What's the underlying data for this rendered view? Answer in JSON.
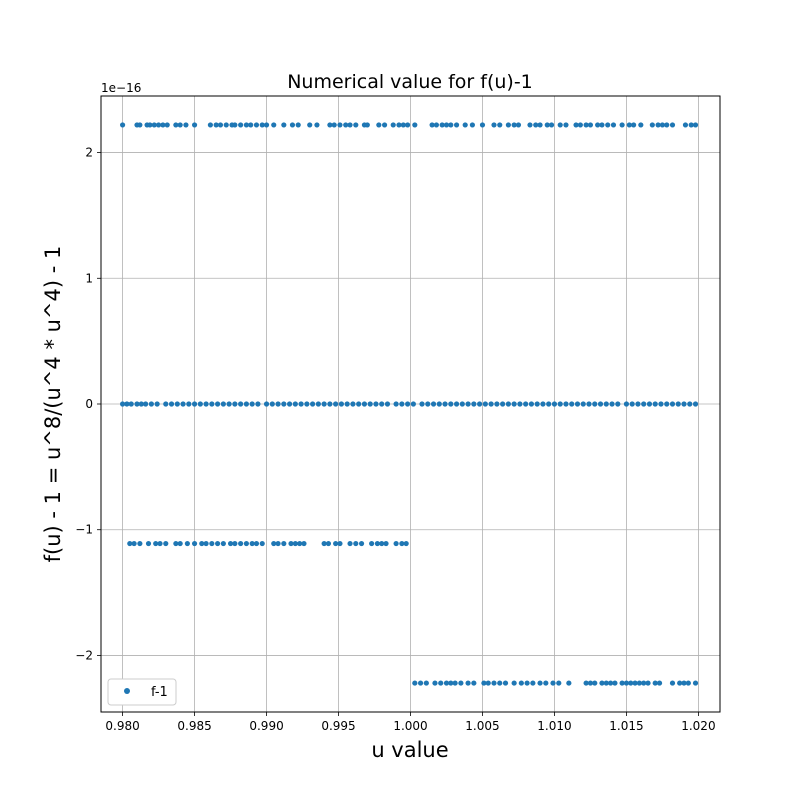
{
  "chart_data": {
    "type": "scatter",
    "title": "Numerical value for f(u)-1",
    "xlabel": "u value",
    "ylabel": "f(u) - 1 = u^8/(u^4 * u^4) - 1",
    "y_offset_text": "1e−16",
    "y_scale_exponent": -16,
    "xlim": [
      0.9785,
      1.0215
    ],
    "ylim": [
      -2.45,
      2.45
    ],
    "x_ticks": [
      0.98,
      0.985,
      0.99,
      0.995,
      1.0,
      1.005,
      1.01,
      1.015,
      1.02
    ],
    "x_tick_labels": [
      "0.980",
      "0.985",
      "0.990",
      "0.995",
      "1.000",
      "1.005",
      "1.010",
      "1.015",
      "1.020"
    ],
    "y_ticks": [
      -2,
      -1,
      0,
      1,
      2
    ],
    "y_tick_labels": [
      "−2",
      "−1",
      "0",
      "1",
      "2"
    ],
    "grid": true,
    "legend_position": "lower-left",
    "colors": {
      "series": "#1f77b4",
      "grid": "#b0b0b0",
      "axis": "#000000"
    },
    "series": [
      {
        "name": "f-1",
        "levels": [
          {
            "y": 2.22,
            "x": [
              0.98,
              0.981,
              0.9812,
              0.9817,
              0.9819,
              0.9822,
              0.9825,
              0.9828,
              0.9831,
              0.9837,
              0.984,
              0.9844,
              0.985,
              0.9861,
              0.9865,
              0.9868,
              0.9872,
              0.9876,
              0.9878,
              0.9882,
              0.9886,
              0.9889,
              0.9893,
              0.9897,
              0.99,
              0.9905,
              0.9912,
              0.9918,
              0.9922,
              0.993,
              0.9935,
              0.9944,
              0.9947,
              0.9951,
              0.9955,
              0.9958,
              0.9962,
              0.9968,
              0.997,
              0.9978,
              0.9982,
              0.9988,
              0.9992,
              0.9995,
              0.9998,
              1.0003,
              1.0015,
              1.0018,
              1.0022,
              1.0025,
              1.0028,
              1.0032,
              1.0038,
              1.0043,
              1.005,
              1.0058,
              1.0062,
              1.0068,
              1.0072,
              1.0075,
              1.0083,
              1.0087,
              1.009,
              1.0095,
              1.0098,
              1.0104,
              1.0108,
              1.0115,
              1.0118,
              1.0122,
              1.0125,
              1.013,
              1.0133,
              1.0137,
              1.0141,
              1.0147,
              1.0152,
              1.0155,
              1.016,
              1.0168,
              1.0172,
              1.0175,
              1.0178,
              1.0182,
              1.0191,
              1.0195,
              1.0198
            ]
          },
          {
            "y": 0.0,
            "x": [
              0.98,
              0.9803,
              0.9806,
              0.981,
              0.9813,
              0.9816,
              0.982,
              0.9824,
              0.983,
              0.9834,
              0.9838,
              0.9842,
              0.9846,
              0.985,
              0.9854,
              0.9858,
              0.9862,
              0.9866,
              0.987,
              0.9874,
              0.9878,
              0.9882,
              0.9886,
              0.989,
              0.9894,
              0.99,
              0.9904,
              0.9908,
              0.9912,
              0.9916,
              0.992,
              0.9924,
              0.9928,
              0.9932,
              0.9936,
              0.994,
              0.9944,
              0.9948,
              0.9952,
              0.9956,
              0.996,
              0.9964,
              0.9968,
              0.9972,
              0.9976,
              0.998,
              0.9984,
              0.999,
              0.9994,
              0.9998,
              1.0002,
              1.0008,
              1.0012,
              1.0016,
              1.002,
              1.0024,
              1.0028,
              1.0032,
              1.0036,
              1.004,
              1.0044,
              1.0048,
              1.0052,
              1.0056,
              1.006,
              1.0064,
              1.0068,
              1.0072,
              1.0076,
              1.008,
              1.0084,
              1.0088,
              1.0092,
              1.0096,
              1.01,
              1.0104,
              1.0108,
              1.0112,
              1.0116,
              1.012,
              1.0124,
              1.0128,
              1.0132,
              1.0136,
              1.014,
              1.0144,
              1.015,
              1.0154,
              1.0158,
              1.0162,
              1.0166,
              1.017,
              1.0174,
              1.0178,
              1.0182,
              1.0186,
              1.019,
              1.0194,
              1.0198
            ]
          },
          {
            "y": -1.11,
            "x": [
              0.9805,
              0.9808,
              0.9812,
              0.9818,
              0.9823,
              0.9826,
              0.983,
              0.9837,
              0.984,
              0.9845,
              0.985,
              0.9855,
              0.9858,
              0.9862,
              0.9866,
              0.987,
              0.9875,
              0.9878,
              0.9882,
              0.9886,
              0.989,
              0.9893,
              0.9897,
              0.9905,
              0.9908,
              0.9912,
              0.9917,
              0.992,
              0.9923,
              0.9926,
              0.994,
              0.9943,
              0.9948,
              0.9951,
              0.9958,
              0.9962,
              0.9966,
              0.9973,
              0.9977,
              0.998,
              0.9983,
              0.999,
              0.9994,
              0.9997
            ]
          },
          {
            "y": -2.22,
            "x": [
              1.0003,
              1.0007,
              1.0011,
              1.0017,
              1.0021,
              1.0025,
              1.0028,
              1.0031,
              1.0035,
              1.004,
              1.0044,
              1.0051,
              1.0054,
              1.0058,
              1.0062,
              1.0066,
              1.0072,
              1.0077,
              1.0081,
              1.0085,
              1.009,
              1.0094,
              1.0099,
              1.0103,
              1.011,
              1.0122,
              1.0125,
              1.0128,
              1.0133,
              1.0136,
              1.0139,
              1.0142,
              1.0147,
              1.015,
              1.0153,
              1.0156,
              1.0159,
              1.0162,
              1.0165,
              1.017,
              1.0173,
              1.0182,
              1.0187,
              1.019,
              1.0193,
              1.0198
            ]
          }
        ]
      }
    ]
  }
}
